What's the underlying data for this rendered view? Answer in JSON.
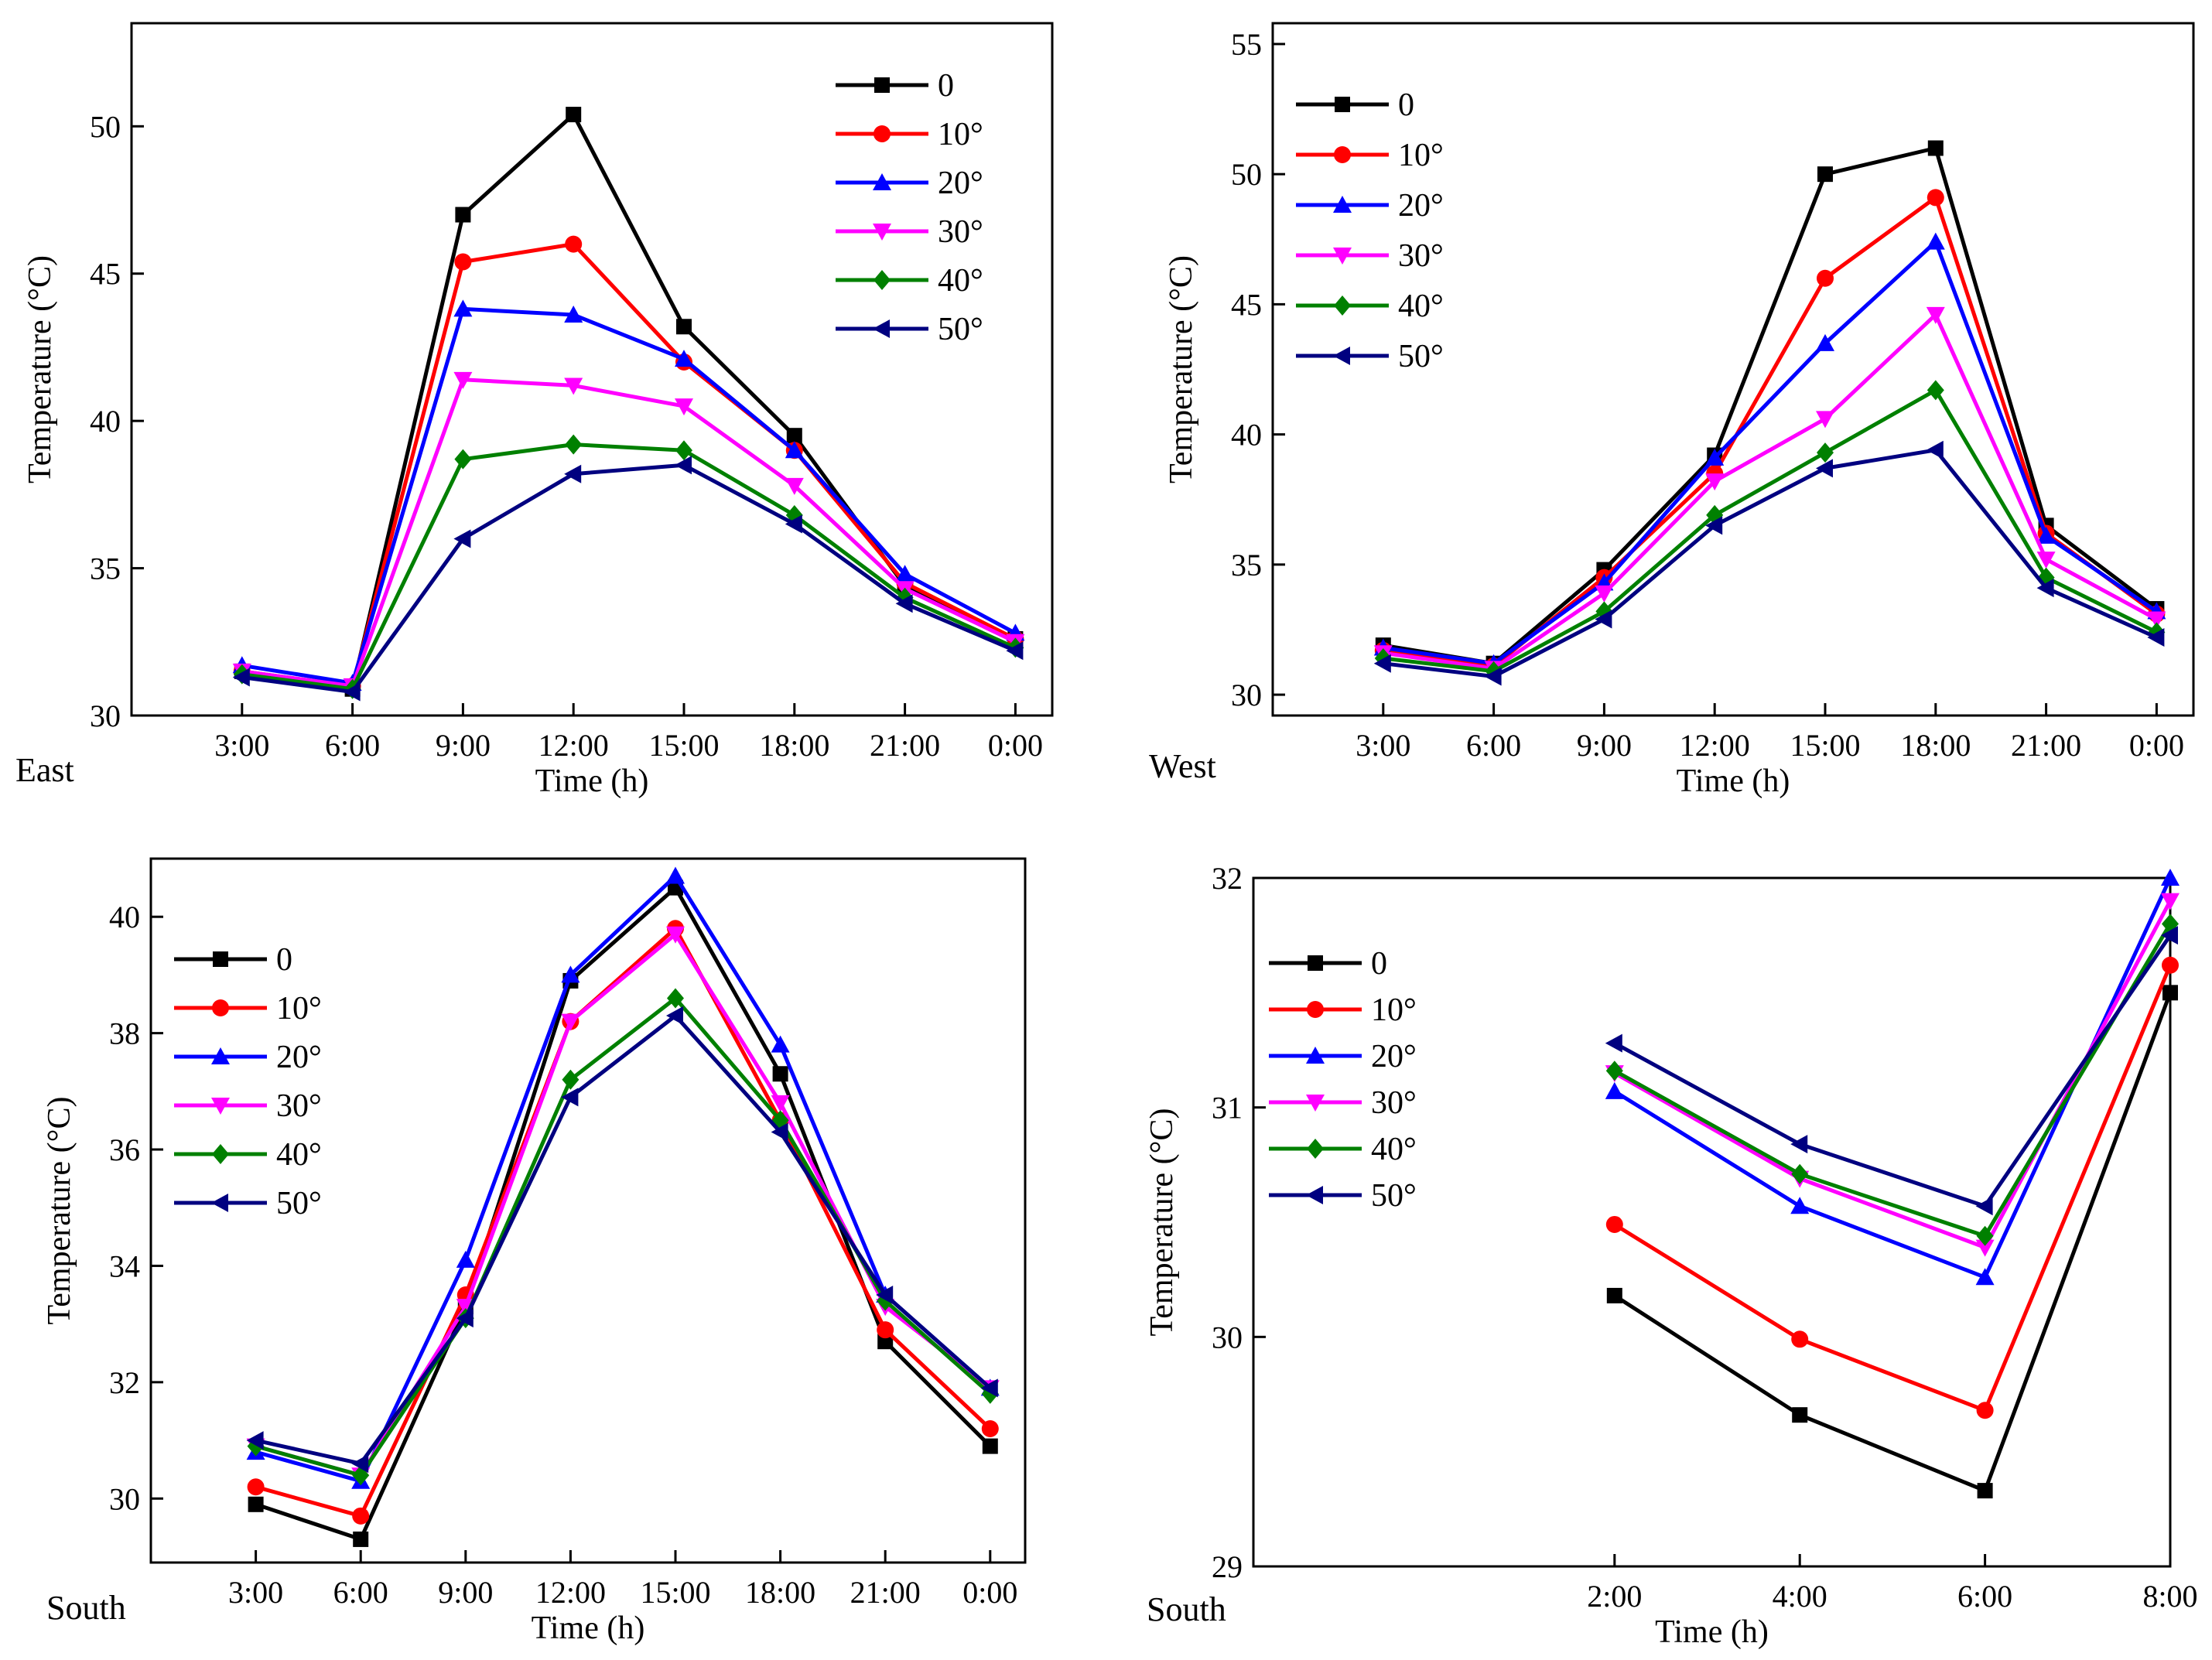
{
  "series_styles": [
    {
      "name": "0",
      "color": "#000000",
      "marker": "square"
    },
    {
      "name": "10°",
      "color": "#ff0000",
      "marker": "circle"
    },
    {
      "name": "20°",
      "color": "#0000ff",
      "marker": "triangle-up"
    },
    {
      "name": "30°",
      "color": "#ff00ff",
      "marker": "triangle-down"
    },
    {
      "name": "40°",
      "color": "#008000",
      "marker": "diamond"
    },
    {
      "name": "50°",
      "color": "#000080",
      "marker": "triangle-left"
    }
  ],
  "chart_data": [
    {
      "type": "line",
      "panel_label": "East",
      "xlabel": "Time (h)",
      "ylabel": "Temperature (°C)",
      "xlim": [
        0,
        25
      ],
      "ylim": [
        30,
        53.5
      ],
      "xticks": [
        3,
        6,
        9,
        12,
        15,
        18,
        21,
        24
      ],
      "xticklabels": [
        "3:00",
        "6:00",
        "9:00",
        "12:00",
        "15:00",
        "18:00",
        "21:00",
        "0:00"
      ],
      "yticks": [
        30,
        35,
        40,
        45,
        50
      ],
      "legend_position": "top-right",
      "x": [
        3,
        6,
        9,
        12,
        15,
        18,
        21,
        24
      ],
      "series": [
        {
          "name": "0",
          "values": [
            31.5,
            30.9,
            47.0,
            50.4,
            43.2,
            39.5,
            34.4,
            32.6
          ]
        },
        {
          "name": "10°",
          "values": [
            31.5,
            31.0,
            45.4,
            46.0,
            42.0,
            39.0,
            34.5,
            32.6
          ]
        },
        {
          "name": "20°",
          "values": [
            31.7,
            31.1,
            43.8,
            43.6,
            42.1,
            39.0,
            34.8,
            32.8
          ]
        },
        {
          "name": "30°",
          "values": [
            31.5,
            31.0,
            41.4,
            41.2,
            40.5,
            37.8,
            34.3,
            32.5
          ]
        },
        {
          "name": "40°",
          "values": [
            31.4,
            30.9,
            38.7,
            39.2,
            39.0,
            36.8,
            34.0,
            32.3
          ]
        },
        {
          "name": "50°",
          "values": [
            31.3,
            30.8,
            36.0,
            38.2,
            38.5,
            36.5,
            33.8,
            32.2
          ]
        }
      ]
    },
    {
      "type": "line",
      "panel_label": "West",
      "xlabel": "Time (h)",
      "ylabel": "Temperature (°C)",
      "xlim": [
        0,
        25
      ],
      "ylim": [
        29.2,
        55.8
      ],
      "xticks": [
        3,
        6,
        9,
        12,
        15,
        18,
        21,
        24
      ],
      "xticklabels": [
        "3:00",
        "6:00",
        "9:00",
        "12:00",
        "15:00",
        "18:00",
        "21:00",
        "0:00"
      ],
      "yticks": [
        30,
        35,
        40,
        45,
        50,
        55
      ],
      "legend_position": "top-left",
      "x": [
        3,
        6,
        9,
        12,
        15,
        18,
        21,
        24
      ],
      "series": [
        {
          "name": "0",
          "values": [
            31.9,
            31.2,
            34.8,
            39.2,
            50.0,
            51.0,
            36.5,
            33.3
          ]
        },
        {
          "name": "10°",
          "values": [
            31.7,
            31.1,
            34.5,
            38.5,
            46.0,
            49.1,
            36.2,
            33.1
          ]
        },
        {
          "name": "20°",
          "values": [
            31.8,
            31.2,
            34.3,
            39.1,
            43.5,
            47.4,
            36.1,
            33.2
          ]
        },
        {
          "name": "30°",
          "values": [
            31.6,
            31.0,
            33.9,
            38.2,
            40.6,
            44.6,
            35.2,
            32.9
          ]
        },
        {
          "name": "40°",
          "values": [
            31.4,
            30.9,
            33.2,
            36.9,
            39.3,
            41.7,
            34.5,
            32.4
          ]
        },
        {
          "name": "50°",
          "values": [
            31.2,
            30.7,
            32.9,
            36.5,
            38.7,
            39.4,
            34.1,
            32.2
          ]
        }
      ]
    },
    {
      "type": "line",
      "panel_label": "South",
      "xlabel": "Time (h)",
      "ylabel": "Temperature (°C)",
      "xlim": [
        0,
        25
      ],
      "ylim": [
        28.9,
        41.0
      ],
      "xticks": [
        3,
        6,
        9,
        12,
        15,
        18,
        21,
        24
      ],
      "xticklabels": [
        "3:00",
        "6:00",
        "9:00",
        "12:00",
        "15:00",
        "18:00",
        "21:00",
        "0:00"
      ],
      "yticks": [
        30,
        32,
        34,
        36,
        38,
        40
      ],
      "legend_position": "top-left",
      "x": [
        3,
        6,
        9,
        12,
        15,
        18,
        21,
        24
      ],
      "series": [
        {
          "name": "0",
          "values": [
            29.9,
            29.3,
            33.3,
            38.9,
            40.5,
            37.3,
            32.7,
            30.9
          ]
        },
        {
          "name": "10°",
          "values": [
            30.2,
            29.7,
            33.5,
            38.2,
            39.8,
            36.5,
            32.9,
            31.2
          ]
        },
        {
          "name": "20°",
          "values": [
            30.8,
            30.3,
            34.1,
            39.0,
            40.7,
            37.8,
            33.5,
            31.9
          ]
        },
        {
          "name": "30°",
          "values": [
            30.9,
            30.4,
            33.3,
            38.2,
            39.7,
            36.8,
            33.3,
            31.9
          ]
        },
        {
          "name": "40°",
          "values": [
            30.9,
            30.4,
            33.1,
            37.2,
            38.6,
            36.5,
            33.4,
            31.8
          ]
        },
        {
          "name": "50°",
          "values": [
            31.0,
            30.6,
            33.1,
            36.9,
            38.3,
            36.3,
            33.5,
            31.9
          ]
        }
      ]
    },
    {
      "type": "line",
      "panel_label": "South",
      "xlabel": "Time (h)",
      "ylabel": "Temperature (°C)",
      "xlim": [
        -1.9,
        8
      ],
      "ylim": [
        29,
        32
      ],
      "xticks": [
        2,
        4,
        6,
        8
      ],
      "xticklabels": [
        "2:00",
        "4:00",
        "6:00",
        "8:00"
      ],
      "yticks": [
        29,
        30,
        31,
        32
      ],
      "legend_position": "top-left",
      "x": [
        2,
        4,
        6,
        8
      ],
      "series": [
        {
          "name": "0",
          "values": [
            30.18,
            29.66,
            29.33,
            31.5
          ]
        },
        {
          "name": "10°",
          "values": [
            30.49,
            29.99,
            29.68,
            31.62
          ]
        },
        {
          "name": "20°",
          "values": [
            31.07,
            30.57,
            30.26,
            32.0
          ]
        },
        {
          "name": "30°",
          "values": [
            31.15,
            30.69,
            30.39,
            31.9
          ]
        },
        {
          "name": "40°",
          "values": [
            31.16,
            30.71,
            30.44,
            31.8
          ]
        },
        {
          "name": "50°",
          "values": [
            31.28,
            30.84,
            30.57,
            31.75
          ]
        }
      ]
    }
  ]
}
